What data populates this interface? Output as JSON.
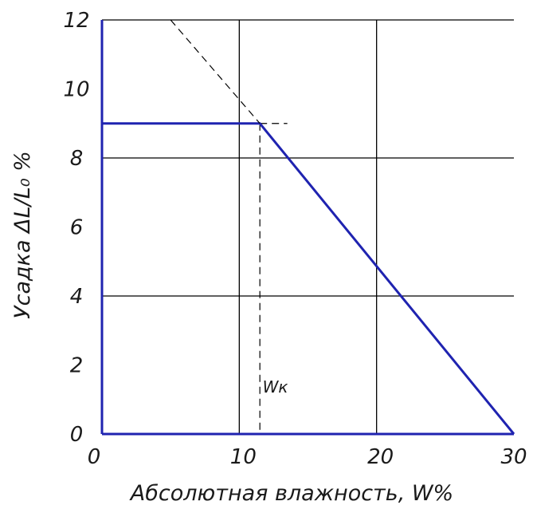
{
  "chart_data": {
    "type": "line",
    "title": "",
    "xlabel": "Абсолютная влажность, W%",
    "ylabel": "Усадка ΔL/L₀ %",
    "xlim": [
      0,
      30
    ],
    "ylim": [
      0,
      12
    ],
    "xticks": [
      "0",
      "10",
      "20",
      "30"
    ],
    "yticks": [
      "0",
      "2",
      "4",
      "6",
      "8",
      "10",
      "12"
    ],
    "grid": true,
    "legend": "none",
    "series": [
      {
        "style": "solid",
        "color": "#1f23b0",
        "x": [
          0,
          11.5,
          30
        ],
        "y": [
          9,
          9,
          0
        ]
      },
      {
        "style": "dashed",
        "color": "#000000",
        "x": [
          5,
          11.5
        ],
        "y": [
          12,
          9
        ]
      }
    ],
    "reference_lines": [
      {
        "style": "dashed",
        "orientation": "vertical",
        "x": 11.5,
        "y_range": [
          0,
          9
        ]
      },
      {
        "style": "dashed",
        "orientation": "horizontal",
        "y": 9,
        "x_range": [
          11.5,
          13.5
        ]
      }
    ],
    "annotations": [
      {
        "text": "Wк",
        "x": 11.7,
        "y": 1.2
      }
    ]
  }
}
